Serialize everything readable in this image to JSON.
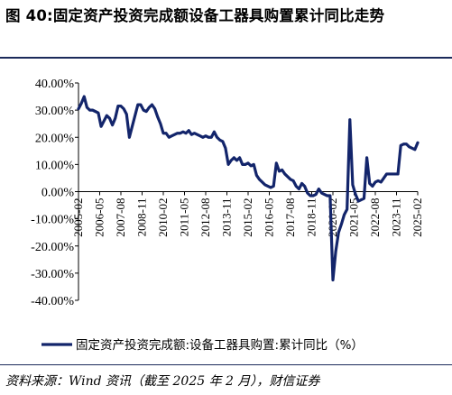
{
  "header": {
    "figure_no": "图 40:",
    "title": "固定资产投资完成额设备工器具购置累计同比走势"
  },
  "source": "资料来源：Wind 资讯（截至 2025 年 2 月），财信证券",
  "colors": {
    "line": "#13256b",
    "axis": "#000000",
    "rule": "#1b2a5a"
  },
  "chart_data": {
    "type": "line",
    "title": "",
    "xlabel": "",
    "ylabel": "",
    "ylim": [
      -40,
      40
    ],
    "y_ticks": [
      "40.00%",
      "30.00%",
      "20.00%",
      "10.00%",
      "0.00%",
      "-10.00%",
      "-20.00%",
      "-30.00%",
      "-40.00%"
    ],
    "x_ticks": [
      "2005-02",
      "2006-05",
      "2007-08",
      "2008-11",
      "2010-02",
      "2011-05",
      "2012-08",
      "2013-11",
      "2015-02",
      "2016-05",
      "2017-08",
      "2018-11",
      "2020-02",
      "2021-05",
      "2022-08",
      "2023-11",
      "2025-02"
    ],
    "grid": false,
    "legend_position": "bottom",
    "series": [
      {
        "name": "固定资产投资完成额:设备工器具购置:累计同比（%）",
        "points": [
          [
            "2005-02",
            30.5
          ],
          [
            "2005-04",
            32.5
          ],
          [
            "2005-06",
            35.0
          ],
          [
            "2005-08",
            31.0
          ],
          [
            "2005-10",
            30.0
          ],
          [
            "2005-12",
            30.0
          ],
          [
            "2006-02",
            29.5
          ],
          [
            "2006-04",
            29.0
          ],
          [
            "2006-06",
            24.0
          ],
          [
            "2006-08",
            26.0
          ],
          [
            "2006-10",
            28.0
          ],
          [
            "2006-12",
            27.0
          ],
          [
            "2007-02",
            24.5
          ],
          [
            "2007-04",
            27.0
          ],
          [
            "2007-06",
            31.5
          ],
          [
            "2007-08",
            31.5
          ],
          [
            "2007-10",
            30.5
          ],
          [
            "2007-12",
            28.5
          ],
          [
            "2008-02",
            20.0
          ],
          [
            "2008-04",
            24.0
          ],
          [
            "2008-06",
            28.0
          ],
          [
            "2008-08",
            32.0
          ],
          [
            "2008-10",
            32.0
          ],
          [
            "2008-12",
            30.0
          ],
          [
            "2009-02",
            29.5
          ],
          [
            "2009-04",
            31.0
          ],
          [
            "2009-06",
            32.0
          ],
          [
            "2009-08",
            30.5
          ],
          [
            "2009-10",
            27.5
          ],
          [
            "2009-12",
            25.0
          ],
          [
            "2010-02",
            21.5
          ],
          [
            "2010-04",
            21.5
          ],
          [
            "2010-06",
            20.0
          ],
          [
            "2010-08",
            20.5
          ],
          [
            "2010-10",
            21.0
          ],
          [
            "2010-12",
            21.5
          ],
          [
            "2011-02",
            21.5
          ],
          [
            "2011-04",
            22.0
          ],
          [
            "2011-06",
            21.5
          ],
          [
            "2011-08",
            22.5
          ],
          [
            "2011-10",
            21.0
          ],
          [
            "2011-12",
            21.5
          ],
          [
            "2012-02",
            21.0
          ],
          [
            "2012-04",
            20.5
          ],
          [
            "2012-06",
            20.0
          ],
          [
            "2012-08",
            20.5
          ],
          [
            "2012-10",
            20.0
          ],
          [
            "2012-12",
            20.0
          ],
          [
            "2013-02",
            22.0
          ],
          [
            "2013-04",
            20.0
          ],
          [
            "2013-06",
            19.0
          ],
          [
            "2013-08",
            18.5
          ],
          [
            "2013-10",
            16.0
          ],
          [
            "2013-12",
            10.0
          ],
          [
            "2014-02",
            11.5
          ],
          [
            "2014-04",
            12.5
          ],
          [
            "2014-06",
            11.5
          ],
          [
            "2014-08",
            12.5
          ],
          [
            "2014-10",
            10.0
          ],
          [
            "2014-12",
            10.0
          ],
          [
            "2015-02",
            10.5
          ],
          [
            "2015-04",
            9.5
          ],
          [
            "2015-06",
            10.0
          ],
          [
            "2015-08",
            6.0
          ],
          [
            "2015-10",
            4.5
          ],
          [
            "2015-12",
            3.5
          ],
          [
            "2016-02",
            2.5
          ],
          [
            "2016-04",
            2.0
          ],
          [
            "2016-06",
            1.5
          ],
          [
            "2016-08",
            2.0
          ],
          [
            "2016-10",
            10.5
          ],
          [
            "2016-12",
            7.5
          ],
          [
            "2017-02",
            8.0
          ],
          [
            "2017-04",
            6.5
          ],
          [
            "2017-06",
            5.5
          ],
          [
            "2017-08",
            4.5
          ],
          [
            "2017-10",
            4.0
          ],
          [
            "2017-12",
            2.0
          ],
          [
            "2018-02",
            1.0
          ],
          [
            "2018-04",
            3.0
          ],
          [
            "2018-06",
            2.0
          ],
          [
            "2018-08",
            -0.5
          ],
          [
            "2018-10",
            -1.5
          ],
          [
            "2018-12",
            -1.5
          ],
          [
            "2019-02",
            -1.0
          ],
          [
            "2019-04",
            1.0
          ],
          [
            "2019-06",
            -0.5
          ],
          [
            "2019-08",
            -1.0
          ],
          [
            "2019-10",
            -1.5
          ],
          [
            "2019-12",
            -1.5
          ],
          [
            "2020-02",
            -32.5
          ],
          [
            "2020-04",
            -22.0
          ],
          [
            "2020-06",
            -15.0
          ],
          [
            "2020-08",
            -12.0
          ],
          [
            "2020-10",
            -8.5
          ],
          [
            "2020-12",
            -6.5
          ],
          [
            "2021-02",
            26.5
          ],
          [
            "2021-04",
            2.5
          ],
          [
            "2021-06",
            -1.0
          ],
          [
            "2021-08",
            -3.5
          ],
          [
            "2021-10",
            -3.0
          ],
          [
            "2021-12",
            -2.5
          ],
          [
            "2022-02",
            12.5
          ],
          [
            "2022-04",
            3.0
          ],
          [
            "2022-06",
            2.0
          ],
          [
            "2022-08",
            3.5
          ],
          [
            "2022-10",
            4.0
          ],
          [
            "2022-12",
            3.5
          ],
          [
            "2023-02",
            5.0
          ],
          [
            "2023-04",
            6.5
          ],
          [
            "2023-06",
            6.5
          ],
          [
            "2023-08",
            6.5
          ],
          [
            "2023-10",
            6.5
          ],
          [
            "2023-12",
            6.5
          ],
          [
            "2024-02",
            17.0
          ],
          [
            "2024-04",
            17.5
          ],
          [
            "2024-06",
            17.5
          ],
          [
            "2024-08",
            16.5
          ],
          [
            "2024-10",
            16.0
          ],
          [
            "2024-12",
            15.5
          ],
          [
            "2025-02",
            18.0
          ]
        ]
      }
    ]
  }
}
